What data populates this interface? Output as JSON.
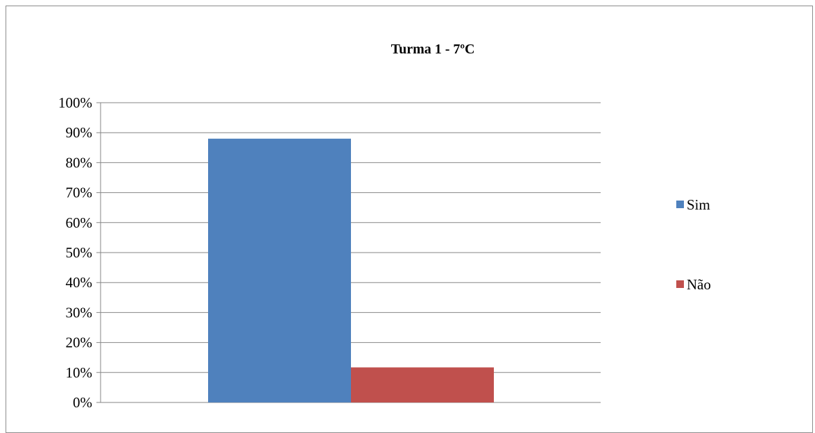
{
  "chart_data": {
    "type": "bar",
    "title": "Turma  1 - 7ºC",
    "xlabel": "",
    "ylabel": "",
    "categories": [
      ""
    ],
    "series": [
      {
        "name": "Sim",
        "values": [
          88
        ],
        "color": "#4f81bd"
      },
      {
        "name": "Não",
        "values": [
          11.7
        ],
        "color": "#c0504d"
      }
    ],
    "ylim": [
      0,
      100
    ],
    "y_ticks": [
      "0%",
      "10%",
      "20%",
      "30%",
      "40%",
      "50%",
      "60%",
      "70%",
      "80%",
      "90%",
      "100%"
    ],
    "y_tick_values": [
      0,
      10,
      20,
      30,
      40,
      50,
      60,
      70,
      80,
      90,
      100
    ],
    "grid": true,
    "grid_color": "#868686",
    "legend_position": "right"
  }
}
